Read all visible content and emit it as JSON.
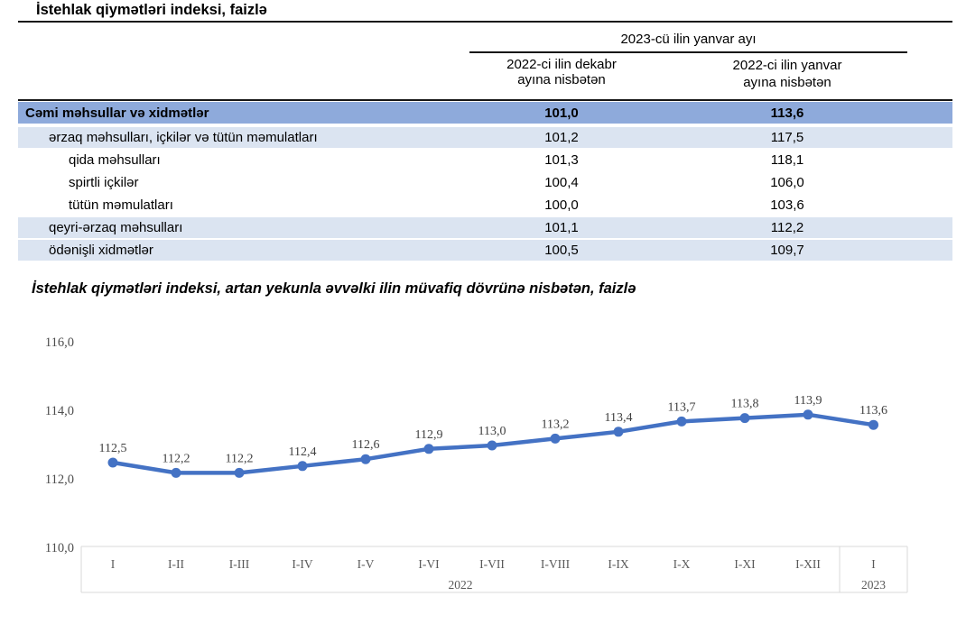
{
  "page": {
    "title": "İstehlak qiymətləri indeksi, faizlə",
    "chart_title": "İstehlak qiymətləri indeksi, artan yekunla əvvəlki ilin müvafiq dövrünə nisbətən, faizlə"
  },
  "table": {
    "group_header": "2023-cü ilin yanvar ayı",
    "col_headers": [
      {
        "line1": "2022-ci ilin dekabr",
        "line2": "ayına nisbətən"
      },
      {
        "line1": "2022-ci ilin yanvar",
        "line2": "ayına nisbətən"
      }
    ],
    "rows": [
      {
        "label": "Cəmi məhsullar və xidmətlər",
        "dec": "101,0",
        "jan": "113,6",
        "style": "total",
        "indent": 0
      },
      {
        "label": "ərzaq məhsulları, içkilər və tütün məmulatları",
        "dec": "101,2",
        "jan": "117,5",
        "style": "alt",
        "indent": 1
      },
      {
        "label": "qida məhsulları",
        "dec": "101,3",
        "jan": "118,1",
        "style": "plain",
        "indent": 2
      },
      {
        "label": "spirtli içkilər",
        "dec": "100,4",
        "jan": "106,0",
        "style": "plain",
        "indent": 2
      },
      {
        "label": "tütün məmulatları",
        "dec": "100,0",
        "jan": "103,6",
        "style": "plain",
        "indent": 2
      },
      {
        "label": "qeyri-ərzaq məhsulları",
        "dec": "101,1",
        "jan": "112,2",
        "style": "alt",
        "indent": 1
      },
      {
        "label": "ödənişli xidmətlər",
        "dec": "100,5",
        "jan": "109,7",
        "style": "alt",
        "indent": 1
      }
    ]
  },
  "chart_data": {
    "type": "line",
    "title": "İstehlak qiymətləri indeksi, artan yekunla əvvəlki ilin müvafiq dövrünə nisbətən, faizlə",
    "categories": [
      "I",
      "I-II",
      "I-III",
      "I-IV",
      "I-V",
      "I-VI",
      "I-VII",
      "I-VIII",
      "I-IX",
      "I-X",
      "I-XI",
      "I-XII",
      "I"
    ],
    "values": [
      112.5,
      112.2,
      112.2,
      112.4,
      112.6,
      112.9,
      113.0,
      113.2,
      113.4,
      113.7,
      113.8,
      113.9,
      113.6
    ],
    "point_labels": [
      "112,5",
      "112,2",
      "112,2",
      "112,4",
      "112,6",
      "112,9",
      "113,0",
      "113,2",
      "113,4",
      "113,7",
      "113,8",
      "113,9",
      "113,6"
    ],
    "year_groups": [
      {
        "label": "2022",
        "count": 12
      },
      {
        "label": "2023",
        "count": 1
      }
    ],
    "y_ticks": [
      {
        "value": 110,
        "label": "110,0"
      },
      {
        "value": 112,
        "label": "112,0"
      },
      {
        "value": 114,
        "label": "114,0"
      },
      {
        "value": 116,
        "label": "116,0"
      }
    ],
    "ylim": [
      110,
      116
    ],
    "grid": false,
    "legend": false
  },
  "colors": {
    "total_row_bg": "#8EAADB",
    "alt_row_bg": "#DBE4F1",
    "line": "#4472C4",
    "axis_border": "#D9D9D9"
  }
}
